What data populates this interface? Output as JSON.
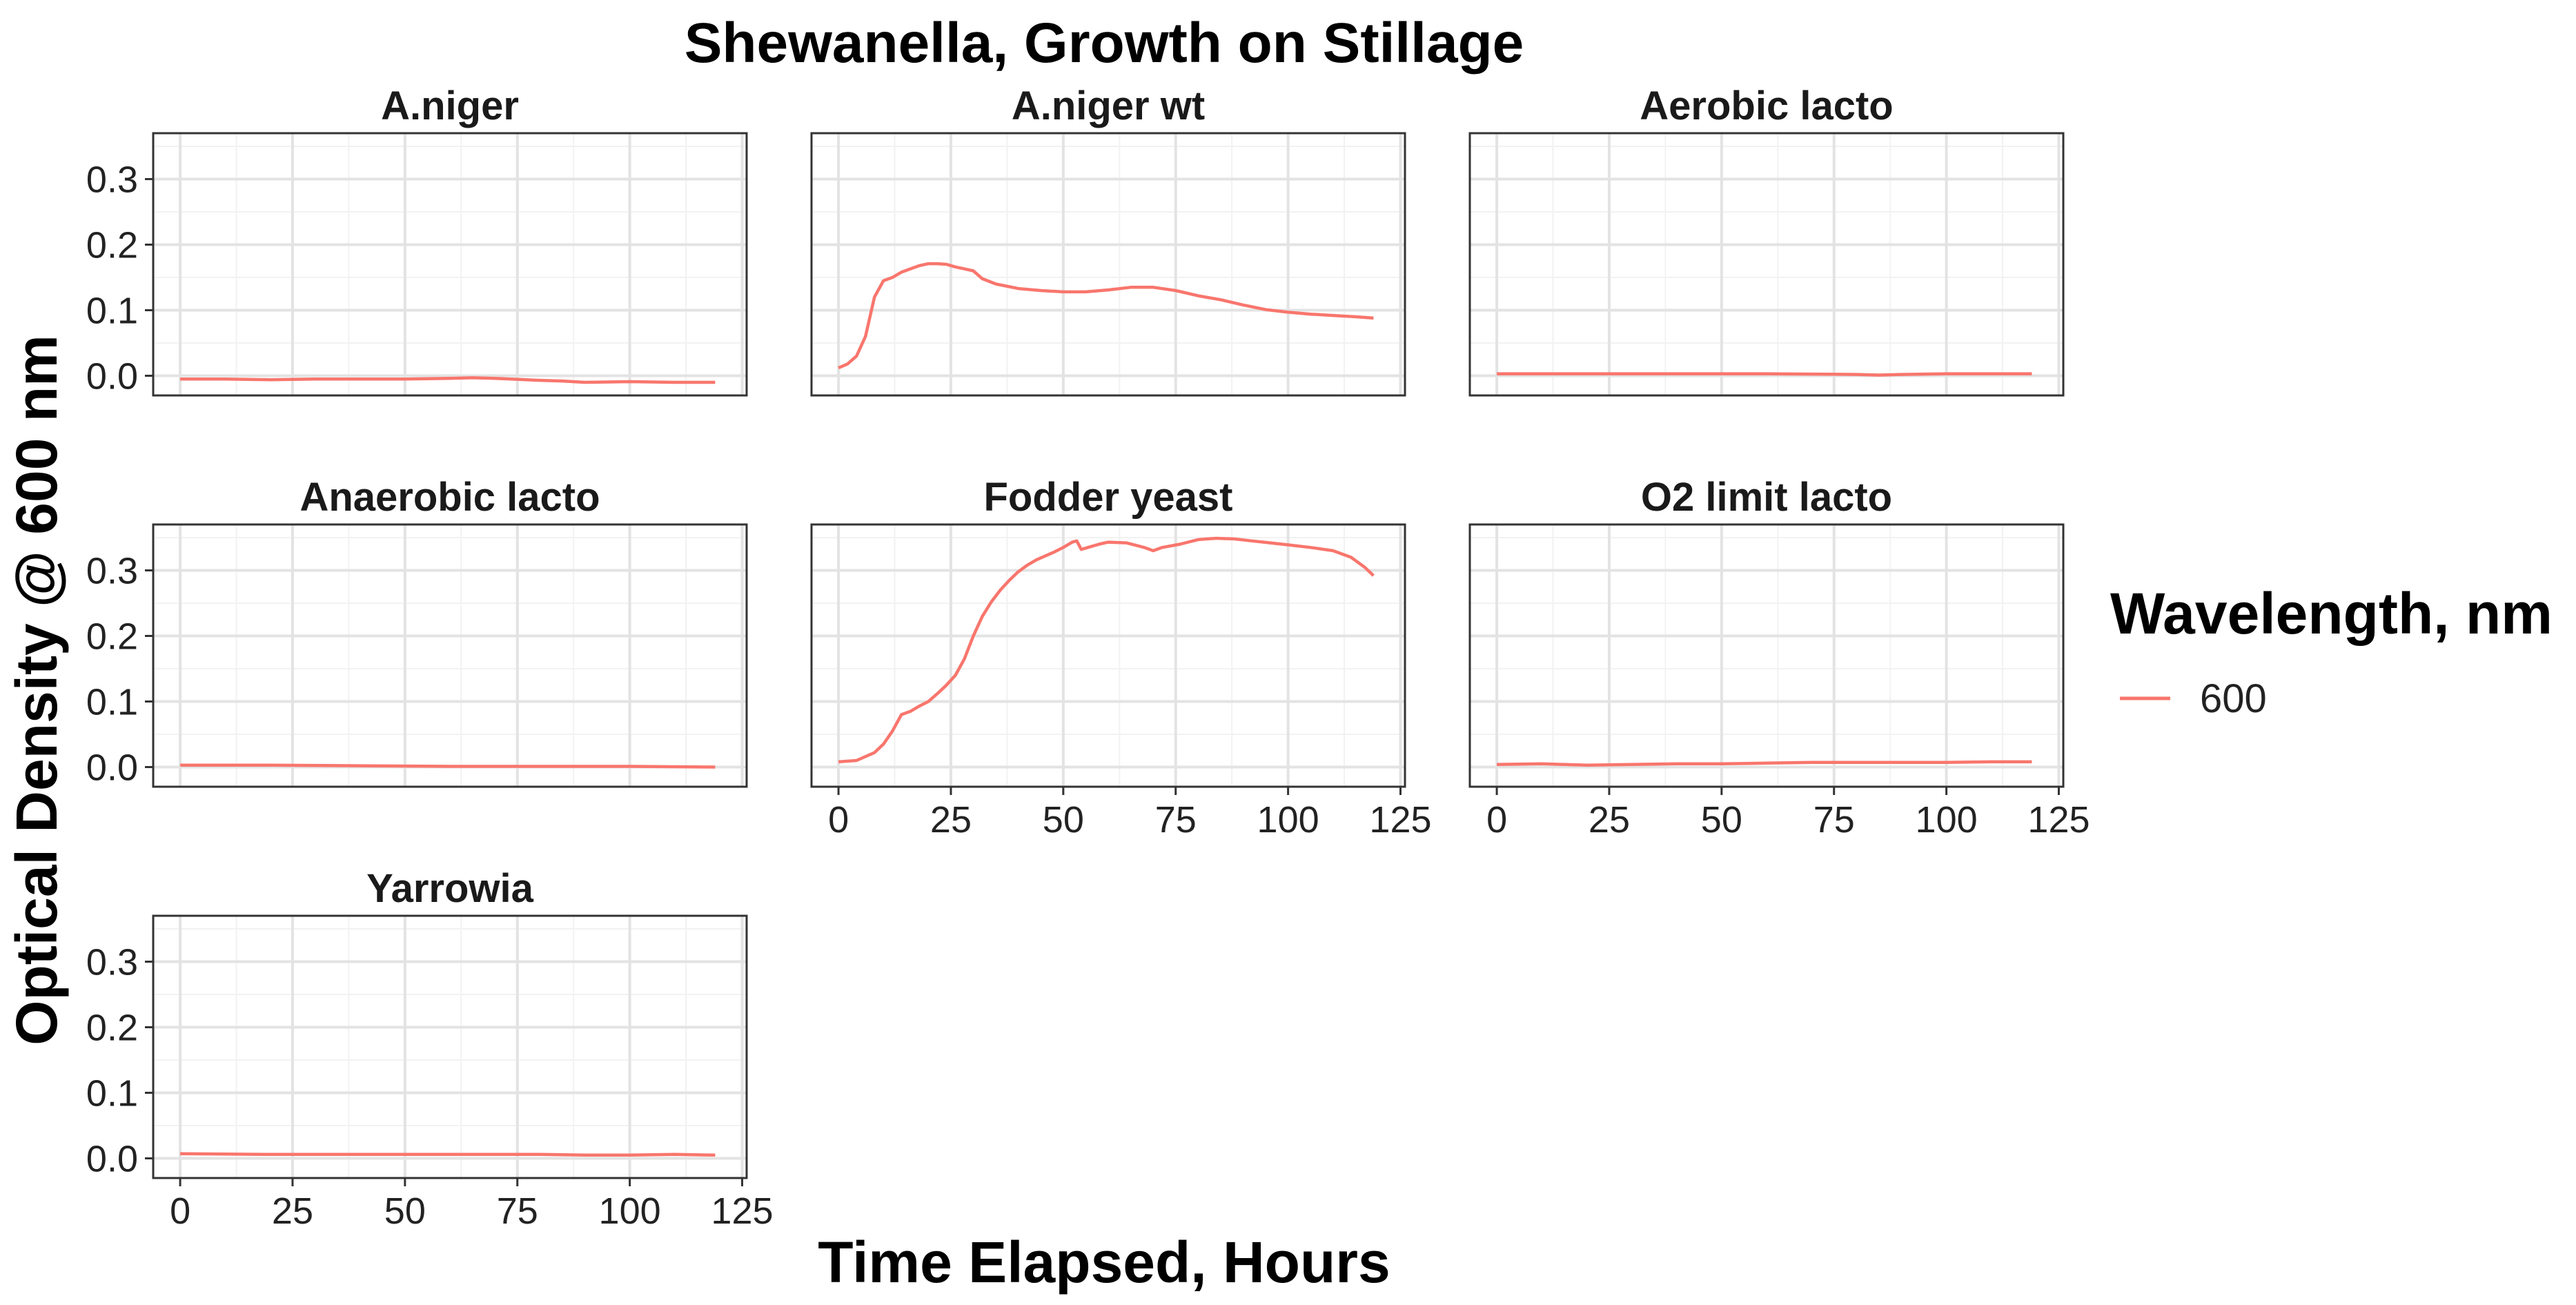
{
  "chart_data": {
    "type": "line",
    "title": "Shewanella, Growth on Stillage",
    "xlabel": "Time Elapsed, Hours",
    "ylabel": "Optical Density @ 600 nm",
    "xlim": [
      -6,
      126
    ],
    "ylim": [
      -0.03,
      0.37
    ],
    "x_ticks": [
      0,
      25,
      50,
      75,
      100,
      125
    ],
    "x_tick_labels": [
      "0",
      "25",
      "50",
      "75",
      "100",
      "125"
    ],
    "y_ticks": [
      0.0,
      0.1,
      0.2,
      0.3
    ],
    "y_tick_labels": [
      "0.0",
      "0.1",
      "0.2",
      "0.3"
    ],
    "grid": true,
    "legend": {
      "title": "Wavelength, nm",
      "position": "right",
      "entries": [
        {
          "label": "600",
          "color": "#F8766D"
        }
      ]
    },
    "line_color": "#F8766D",
    "panels": [
      {
        "title": "A.niger",
        "series": [
          {
            "name": "600",
            "x": [
              0,
              10,
              20,
              30,
              40,
              50,
              60,
              65,
              70,
              80,
              85,
              90,
              100,
              110,
              119
            ],
            "y": [
              -0.005,
              -0.005,
              -0.006,
              -0.005,
              -0.005,
              -0.005,
              -0.004,
              -0.003,
              -0.004,
              -0.007,
              -0.008,
              -0.01,
              -0.009,
              -0.01,
              -0.01
            ]
          }
        ]
      },
      {
        "title": "A.niger wt",
        "series": [
          {
            "name": "600",
            "x": [
              0,
              2,
              4,
              6,
              8,
              10,
              12,
              14,
              16,
              18,
              20,
              22,
              24,
              26,
              28,
              30,
              32,
              35,
              40,
              45,
              50,
              55,
              60,
              65,
              70,
              75,
              80,
              85,
              90,
              95,
              100,
              105,
              110,
              115,
              119
            ],
            "y": [
              0.012,
              0.018,
              0.03,
              0.06,
              0.12,
              0.145,
              0.15,
              0.158,
              0.163,
              0.168,
              0.171,
              0.171,
              0.17,
              0.166,
              0.163,
              0.16,
              0.148,
              0.14,
              0.133,
              0.13,
              0.128,
              0.128,
              0.131,
              0.135,
              0.135,
              0.13,
              0.122,
              0.116,
              0.108,
              0.101,
              0.097,
              0.094,
              0.092,
              0.09,
              0.088
            ]
          }
        ]
      },
      {
        "title": "Aerobic lacto",
        "series": [
          {
            "name": "600",
            "x": [
              0,
              20,
              40,
              60,
              80,
              85,
              90,
              100,
              110,
              119
            ],
            "y": [
              0.003,
              0.003,
              0.003,
              0.003,
              0.002,
              0.001,
              0.002,
              0.003,
              0.003,
              0.003
            ]
          }
        ]
      },
      {
        "title": "Anaerobic lacto",
        "series": [
          {
            "name": "600",
            "x": [
              0,
              20,
              40,
              60,
              80,
              100,
              119
            ],
            "y": [
              0.003,
              0.003,
              0.002,
              0.001,
              0.001,
              0.001,
              0.0
            ]
          }
        ]
      },
      {
        "title": "Fodder yeast",
        "series": [
          {
            "name": "600",
            "x": [
              0,
              4,
              8,
              10,
              12,
              14,
              16,
              18,
              20,
              22,
              24,
              26,
              28,
              30,
              32,
              34,
              36,
              38,
              40,
              42,
              44,
              46,
              48,
              50,
              52,
              53,
              54,
              56,
              58,
              60,
              64,
              68,
              70,
              72,
              76,
              80,
              84,
              88,
              92,
              96,
              100,
              105,
              110,
              114,
              117,
              119
            ],
            "y": [
              0.008,
              0.01,
              0.022,
              0.035,
              0.055,
              0.08,
              0.085,
              0.093,
              0.1,
              0.112,
              0.125,
              0.14,
              0.165,
              0.2,
              0.23,
              0.252,
              0.27,
              0.285,
              0.298,
              0.308,
              0.316,
              0.322,
              0.328,
              0.335,
              0.343,
              0.345,
              0.332,
              0.336,
              0.34,
              0.343,
              0.342,
              0.335,
              0.33,
              0.335,
              0.34,
              0.347,
              0.349,
              0.348,
              0.345,
              0.342,
              0.339,
              0.335,
              0.33,
              0.32,
              0.305,
              0.292
            ]
          }
        ]
      },
      {
        "title": "O2 limit lacto",
        "series": [
          {
            "name": "600",
            "x": [
              0,
              10,
              20,
              30,
              40,
              50,
              60,
              70,
              80,
              90,
              100,
              110,
              119
            ],
            "y": [
              0.004,
              0.005,
              0.003,
              0.004,
              0.005,
              0.005,
              0.006,
              0.007,
              0.007,
              0.007,
              0.007,
              0.008,
              0.008
            ]
          }
        ]
      },
      {
        "title": "Yarrowia",
        "series": [
          {
            "name": "600",
            "x": [
              0,
              20,
              40,
              60,
              80,
              90,
              100,
              110,
              119
            ],
            "y": [
              0.007,
              0.006,
              0.006,
              0.006,
              0.006,
              0.005,
              0.005,
              0.006,
              0.005
            ]
          }
        ]
      }
    ]
  }
}
